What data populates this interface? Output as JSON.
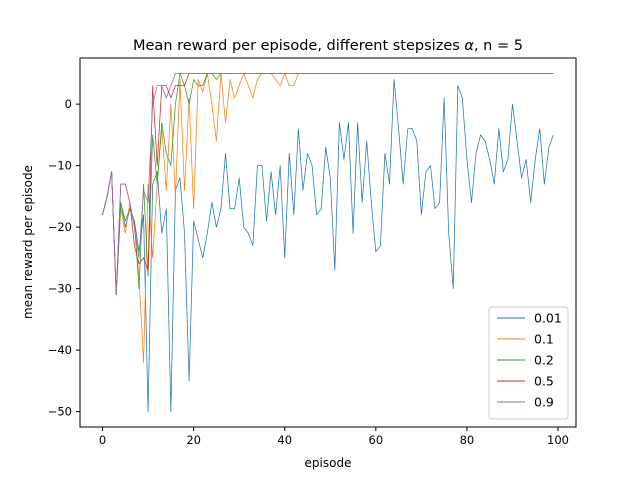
{
  "chart_data": {
    "type": "line",
    "title_prefix": "Mean reward per episode, different stepsizes ",
    "title_symbol": "α",
    "title_suffix": ", n = 5",
    "xlabel": "episode",
    "ylabel": "mean reward per episode",
    "xlim": [
      -4.95,
      103.95
    ],
    "ylim": [
      -52.5,
      7.5
    ],
    "xticks": [
      0,
      20,
      40,
      60,
      80,
      100
    ],
    "yticks": [
      -50,
      -40,
      -30,
      -20,
      -10,
      0
    ],
    "grid": false,
    "legend_position": "lower right",
    "series": [
      {
        "name": "0.01",
        "color": "#1f77b4",
        "values": [
          -18,
          -15,
          -11,
          -31,
          -16,
          -20,
          -17,
          -19,
          -24,
          -18,
          -50,
          -13,
          -11,
          -21,
          -17,
          -50,
          -14,
          -12,
          -21,
          -45,
          -19,
          -22,
          -25,
          -21,
          -16,
          -20,
          -17,
          -8,
          -17,
          -17,
          -12,
          -20,
          -21,
          -23,
          -10,
          -10,
          -19,
          -11,
          -18,
          -10,
          -25,
          -8,
          -18,
          -4,
          -14,
          -8,
          -10,
          -18,
          -17,
          -7,
          -12,
          -27,
          -3,
          -9,
          -3,
          -21,
          -3,
          -16,
          -6,
          -16,
          -24,
          -23,
          -8,
          -13,
          4,
          -4,
          -13,
          -4,
          -4,
          -6,
          -18,
          -11,
          -10,
          -17,
          -16,
          1,
          -21,
          -30,
          3,
          1,
          -9,
          -16,
          -8,
          -5,
          -6,
          -9,
          -13,
          -4,
          -11,
          -9,
          0,
          -6,
          -12,
          -9,
          -16,
          -9,
          -4,
          -13,
          -7,
          -5
        ]
      },
      {
        "name": "0.1",
        "color": "#ff7f0e",
        "values": [
          -18,
          -15,
          -11,
          -31,
          -17,
          -21,
          -16,
          -20,
          -28,
          -42,
          -13,
          -25,
          -13,
          -4,
          -14,
          0,
          -15,
          4,
          -14,
          1,
          -17,
          4,
          2,
          5,
          0,
          -6,
          5,
          -3,
          4,
          1,
          3,
          5,
          3,
          1,
          4,
          5,
          5,
          5,
          4,
          3,
          5,
          3,
          3,
          5,
          5,
          5,
          5,
          5,
          5,
          5,
          5,
          5,
          5,
          5,
          5,
          5,
          5,
          5,
          5,
          5,
          5,
          5,
          5,
          5,
          5,
          5,
          5,
          5,
          5,
          5,
          5,
          5,
          5,
          5,
          5,
          5,
          5,
          5,
          5,
          5,
          5,
          5,
          5,
          5,
          5,
          5,
          5,
          5,
          5,
          5,
          5,
          5,
          5,
          5,
          5,
          5,
          5,
          5,
          5,
          5
        ]
      },
      {
        "name": "0.2",
        "color": "#2ca02c",
        "values": [
          -18,
          -15,
          -11,
          -31,
          -16,
          -19,
          -17,
          -19,
          -30,
          -13,
          -28,
          -5,
          -13,
          -3,
          -8,
          -10,
          0,
          5,
          3,
          0,
          4,
          3,
          3,
          5,
          5,
          4,
          5,
          5,
          5,
          5,
          5,
          5,
          5,
          5,
          5,
          5,
          5,
          5,
          5,
          5,
          5,
          5,
          5,
          5,
          5,
          5,
          5,
          5,
          5,
          5,
          5,
          5,
          5,
          5,
          5,
          5,
          5,
          5,
          5,
          5,
          5,
          5,
          5,
          5,
          5,
          5,
          5,
          5,
          5,
          5,
          5,
          5,
          5,
          5,
          5,
          5,
          5,
          5,
          5,
          5,
          5,
          5,
          5,
          5,
          5,
          5,
          5,
          5,
          5,
          5,
          5,
          5,
          5,
          5,
          5,
          5,
          5,
          5,
          5,
          5
        ]
      },
      {
        "name": "0.5",
        "color": "#d62728",
        "values": [
          -18,
          -15,
          -11,
          -31,
          -13,
          -13,
          -16,
          -23,
          -26,
          -25,
          -27,
          3,
          -10,
          3,
          3,
          1,
          3,
          3,
          3,
          5,
          5,
          5,
          5,
          5,
          5,
          5,
          5,
          5,
          5,
          5,
          5,
          5,
          5,
          5,
          5,
          5,
          5,
          5,
          5,
          5,
          5,
          5,
          5,
          5,
          5,
          5,
          5,
          5,
          5,
          5,
          5,
          5,
          5,
          5,
          5,
          5,
          5,
          5,
          5,
          5,
          5,
          5,
          5,
          5,
          5,
          5,
          5,
          5,
          5,
          5,
          5,
          5,
          5,
          5,
          5,
          5,
          5,
          5,
          5,
          5,
          5,
          5,
          5,
          5,
          5,
          5,
          5,
          5,
          5,
          5,
          5,
          5,
          5,
          5,
          5,
          5,
          5,
          5,
          5,
          5
        ]
      },
      {
        "name": "0.9",
        "color": "#9467bd",
        "values": [
          -18,
          -15,
          -11,
          -31,
          -13,
          -13,
          -16,
          -20,
          -25,
          -14,
          -16,
          0,
          3,
          3,
          1,
          3,
          5,
          5,
          5,
          5,
          5,
          5,
          5,
          5,
          5,
          5,
          5,
          5,
          5,
          5,
          5,
          5,
          5,
          5,
          5,
          5,
          5,
          5,
          5,
          5,
          5,
          5,
          5,
          5,
          5,
          5,
          5,
          5,
          5,
          5,
          5,
          5,
          5,
          5,
          5,
          5,
          5,
          5,
          5,
          5,
          5,
          5,
          5,
          5,
          5,
          5,
          5,
          5,
          5,
          5,
          5,
          5,
          5,
          5,
          5,
          5,
          5,
          5,
          5,
          5,
          5,
          5,
          5,
          5,
          5,
          5,
          5,
          5,
          5,
          5,
          5,
          5,
          5,
          5,
          5,
          5,
          5,
          5,
          5,
          5
        ]
      }
    ]
  }
}
